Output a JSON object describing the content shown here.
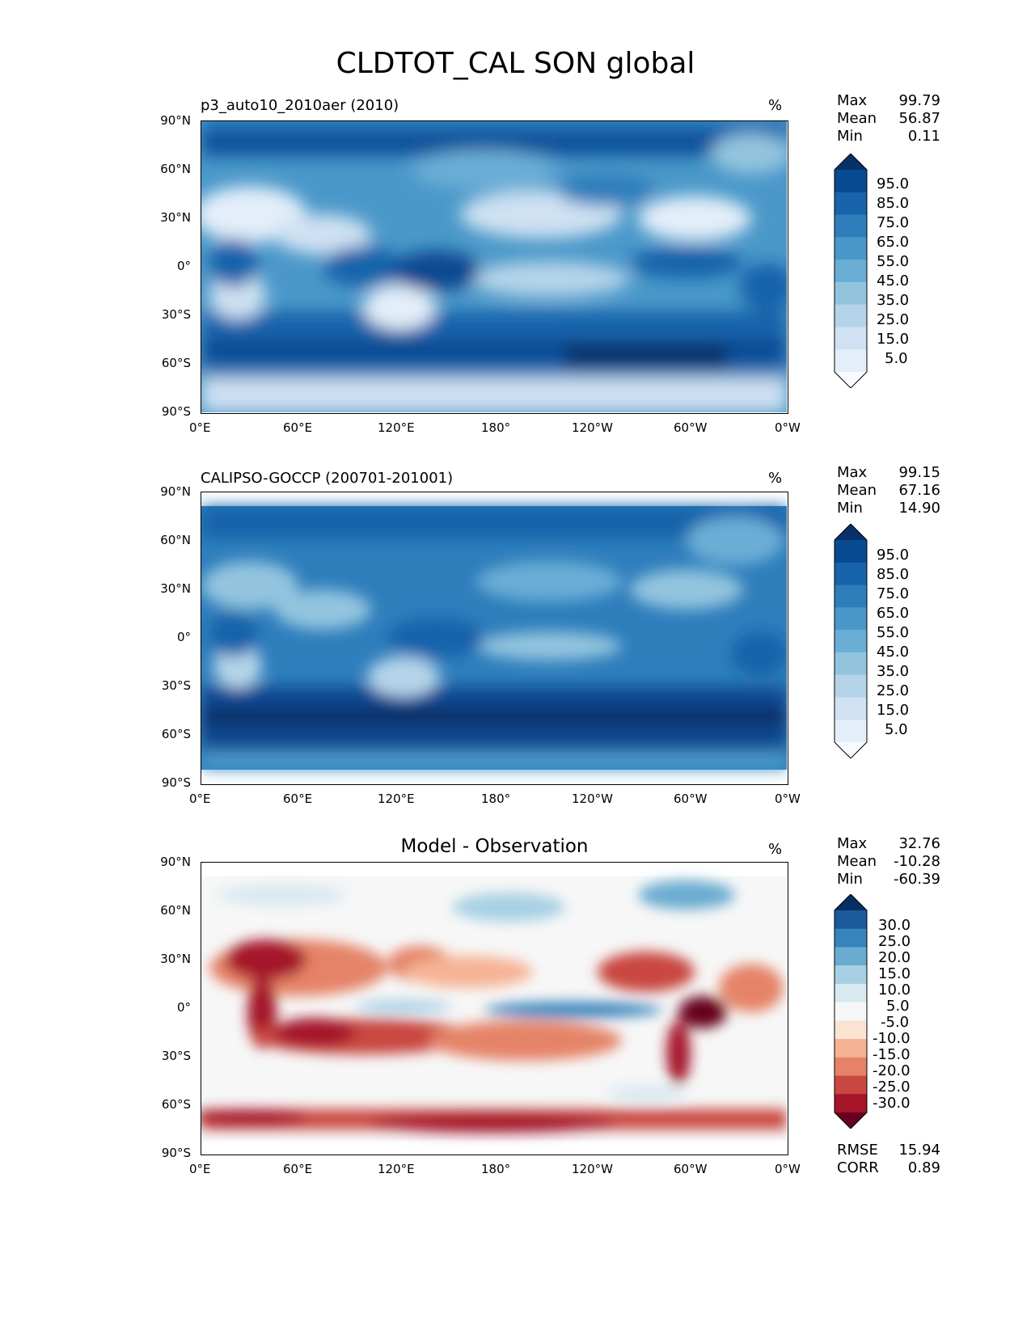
{
  "figure": {
    "title": "CLDTOT_CAL SON global",
    "xticks": [
      "0°E",
      "60°E",
      "120°E",
      "180°",
      "120°W",
      "60°W",
      "0°W"
    ],
    "yticks": [
      "90°N",
      "60°N",
      "30°N",
      "0°",
      "30°S",
      "60°S",
      "90°S"
    ]
  },
  "colors": {
    "blues": [
      "#f7fbff",
      "#e3eef9",
      "#cfe1f2",
      "#b5d4e9",
      "#93c4de",
      "#6aaed6",
      "#4a98c9",
      "#2e7ebc",
      "#1764ab",
      "#084a91",
      "#08306b"
    ],
    "rdbu": [
      "#67001f",
      "#a51429",
      "#c94741",
      "#e58368",
      "#f6b394",
      "#fbe3d4",
      "#f7f7f7",
      "#d9e9f1",
      "#a7d0e4",
      "#6aacd0",
      "#3783bb",
      "#1b5a9d",
      "#053061"
    ]
  },
  "panels": [
    {
      "title": "p3_auto10_2010aer (2010)",
      "units": "%",
      "stats": [
        {
          "label": "Max",
          "value": "99.79"
        },
        {
          "label": "Mean",
          "value": "56.87"
        },
        {
          "label": "Min",
          "value": "0.11"
        }
      ],
      "colorbar_labels": [
        "95.0",
        "85.0",
        "75.0",
        "65.0",
        "55.0",
        "45.0",
        "35.0",
        "25.0",
        "15.0",
        "5.0"
      ],
      "colorbar_type": "blues"
    },
    {
      "title": "CALIPSO-GOCCP (200701-201001)",
      "units": "%",
      "stats": [
        {
          "label": "Max",
          "value": "99.15"
        },
        {
          "label": "Mean",
          "value": "67.16"
        },
        {
          "label": "Min",
          "value": "14.90"
        }
      ],
      "colorbar_labels": [
        "95.0",
        "85.0",
        "75.0",
        "65.0",
        "55.0",
        "45.0",
        "35.0",
        "25.0",
        "15.0",
        "5.0"
      ],
      "colorbar_type": "blues"
    },
    {
      "title": "Model - Observation",
      "units": "%",
      "stats": [
        {
          "label": "Max",
          "value": "32.76"
        },
        {
          "label": "Mean",
          "value": "-10.28"
        },
        {
          "label": "Min",
          "value": "-60.39"
        }
      ],
      "colorbar_labels": [
        "30.0",
        "25.0",
        "20.0",
        "15.0",
        "10.0",
        "5.0",
        "-5.0",
        "-10.0",
        "-15.0",
        "-20.0",
        "-25.0",
        "-30.0"
      ],
      "colorbar_type": "rdbu",
      "metrics": [
        {
          "label": "RMSE",
          "value": "15.94"
        },
        {
          "label": "CORR",
          "value": "0.89"
        }
      ]
    }
  ]
}
